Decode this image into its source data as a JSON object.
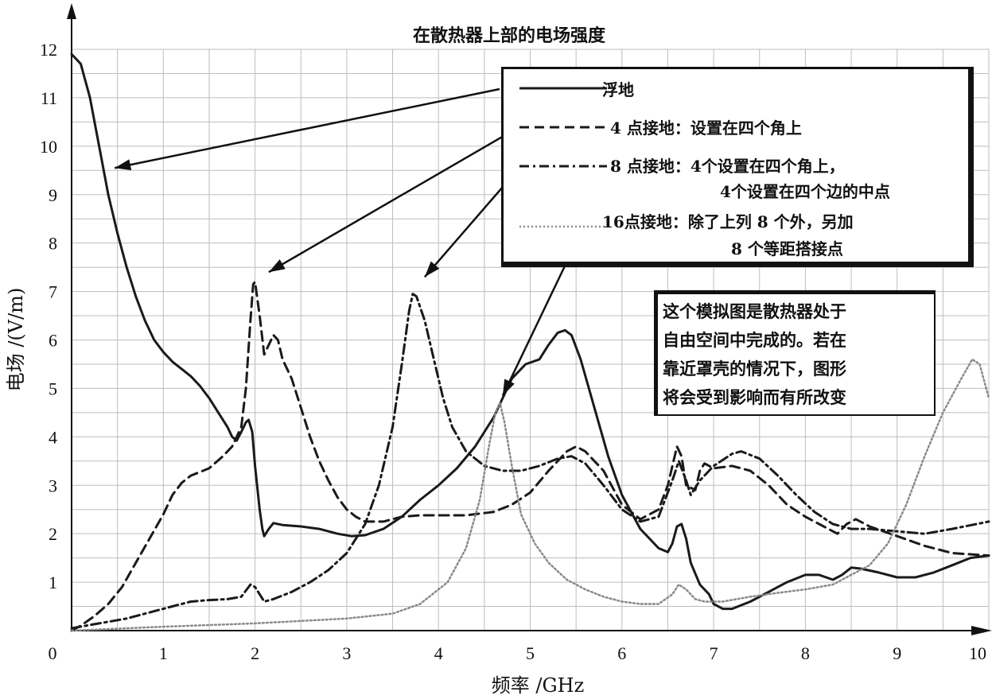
{
  "chart_data": {
    "type": "line",
    "title": "在散热器上部的电场强度",
    "xlabel": "频率 /GHz",
    "ylabel": "电场 /(V/m)",
    "xlim": [
      0,
      10
    ],
    "ylim": [
      0,
      12
    ],
    "x_ticks": [
      "0",
      "1",
      "2",
      "3",
      "4",
      "5",
      "6",
      "7",
      "8",
      "9",
      "10"
    ],
    "y_ticks": [
      "1",
      "2",
      "3",
      "4",
      "5",
      "6",
      "7",
      "8",
      "9",
      "10",
      "11",
      "12"
    ],
    "grid": true,
    "legend_position": "top-right",
    "series": [
      {
        "name": "浮地",
        "style": "solid",
        "color": "#1a1a1a",
        "points": [
          [
            0,
            11.9
          ],
          [
            0.1,
            11.7
          ],
          [
            0.2,
            11.0
          ],
          [
            0.3,
            10.0
          ],
          [
            0.4,
            9.0
          ],
          [
            0.5,
            8.2
          ],
          [
            0.6,
            7.5
          ],
          [
            0.7,
            6.9
          ],
          [
            0.8,
            6.4
          ],
          [
            0.9,
            6.0
          ],
          [
            1.0,
            5.75
          ],
          [
            1.1,
            5.55
          ],
          [
            1.2,
            5.4
          ],
          [
            1.3,
            5.25
          ],
          [
            1.4,
            5.05
          ],
          [
            1.5,
            4.8
          ],
          [
            1.6,
            4.5
          ],
          [
            1.7,
            4.2
          ],
          [
            1.75,
            4.0
          ],
          [
            1.8,
            3.92
          ],
          [
            1.85,
            4.1
          ],
          [
            1.9,
            4.3
          ],
          [
            1.93,
            4.35
          ],
          [
            1.97,
            4.1
          ],
          [
            2.0,
            3.4
          ],
          [
            2.05,
            2.5
          ],
          [
            2.08,
            2.1
          ],
          [
            2.1,
            1.95
          ],
          [
            2.15,
            2.1
          ],
          [
            2.2,
            2.22
          ],
          [
            2.3,
            2.18
          ],
          [
            2.5,
            2.15
          ],
          [
            2.7,
            2.1
          ],
          [
            2.9,
            2.0
          ],
          [
            3.05,
            1.95
          ],
          [
            3.2,
            1.97
          ],
          [
            3.4,
            2.1
          ],
          [
            3.6,
            2.35
          ],
          [
            3.8,
            2.7
          ],
          [
            4.0,
            3.0
          ],
          [
            4.2,
            3.35
          ],
          [
            4.4,
            3.8
          ],
          [
            4.6,
            4.4
          ],
          [
            4.8,
            5.2
          ],
          [
            4.95,
            5.5
          ],
          [
            5.1,
            5.6
          ],
          [
            5.2,
            5.9
          ],
          [
            5.3,
            6.15
          ],
          [
            5.38,
            6.2
          ],
          [
            5.45,
            6.1
          ],
          [
            5.55,
            5.6
          ],
          [
            5.7,
            4.6
          ],
          [
            5.85,
            3.6
          ],
          [
            6.0,
            2.8
          ],
          [
            6.2,
            2.1
          ],
          [
            6.4,
            1.7
          ],
          [
            6.5,
            1.62
          ],
          [
            6.55,
            1.8
          ],
          [
            6.6,
            2.15
          ],
          [
            6.65,
            2.2
          ],
          [
            6.7,
            1.9
          ],
          [
            6.75,
            1.4
          ],
          [
            6.85,
            0.95
          ],
          [
            6.95,
            0.75
          ],
          [
            7.0,
            0.55
          ],
          [
            7.1,
            0.45
          ],
          [
            7.2,
            0.45
          ],
          [
            7.4,
            0.6
          ],
          [
            7.6,
            0.8
          ],
          [
            7.8,
            1.0
          ],
          [
            8.0,
            1.15
          ],
          [
            8.15,
            1.15
          ],
          [
            8.3,
            1.05
          ],
          [
            8.4,
            1.15
          ],
          [
            8.5,
            1.3
          ],
          [
            8.6,
            1.28
          ],
          [
            8.8,
            1.2
          ],
          [
            9.0,
            1.1
          ],
          [
            9.2,
            1.1
          ],
          [
            9.4,
            1.2
          ],
          [
            9.6,
            1.35
          ],
          [
            9.8,
            1.5
          ],
          [
            10,
            1.55
          ]
        ]
      },
      {
        "name": "4 点接地：设置在四个角上",
        "style": "dashed",
        "color": "#1a1a1a",
        "points": [
          [
            0,
            0.0
          ],
          [
            0.1,
            0.1
          ],
          [
            0.25,
            0.3
          ],
          [
            0.4,
            0.55
          ],
          [
            0.55,
            0.9
          ],
          [
            0.7,
            1.4
          ],
          [
            0.85,
            1.9
          ],
          [
            1.0,
            2.4
          ],
          [
            1.1,
            2.8
          ],
          [
            1.2,
            3.05
          ],
          [
            1.3,
            3.2
          ],
          [
            1.5,
            3.35
          ],
          [
            1.65,
            3.6
          ],
          [
            1.75,
            3.8
          ],
          [
            1.85,
            4.2
          ],
          [
            1.9,
            5.0
          ],
          [
            1.95,
            6.4
          ],
          [
            1.98,
            7.15
          ],
          [
            2.0,
            7.2
          ],
          [
            2.05,
            6.5
          ],
          [
            2.1,
            5.7
          ],
          [
            2.15,
            5.9
          ],
          [
            2.2,
            6.1
          ],
          [
            2.25,
            6.0
          ],
          [
            2.3,
            5.6
          ],
          [
            2.4,
            5.2
          ],
          [
            2.5,
            4.6
          ],
          [
            2.6,
            4.0
          ],
          [
            2.7,
            3.5
          ],
          [
            2.8,
            3.1
          ],
          [
            2.9,
            2.75
          ],
          [
            3.0,
            2.5
          ],
          [
            3.1,
            2.35
          ],
          [
            3.2,
            2.25
          ],
          [
            3.4,
            2.25
          ],
          [
            3.6,
            2.35
          ],
          [
            3.8,
            2.38
          ],
          [
            4.0,
            2.38
          ],
          [
            4.3,
            2.38
          ],
          [
            4.6,
            2.45
          ],
          [
            4.8,
            2.6
          ],
          [
            5.0,
            2.85
          ],
          [
            5.2,
            3.3
          ],
          [
            5.4,
            3.7
          ],
          [
            5.5,
            3.8
          ],
          [
            5.6,
            3.7
          ],
          [
            5.8,
            3.3
          ],
          [
            6.0,
            2.6
          ],
          [
            6.2,
            2.3
          ],
          [
            6.4,
            2.5
          ],
          [
            6.5,
            3.0
          ],
          [
            6.6,
            3.8
          ],
          [
            6.65,
            3.6
          ],
          [
            6.7,
            3.0
          ],
          [
            6.8,
            2.9
          ],
          [
            6.85,
            3.3
          ],
          [
            6.9,
            3.45
          ],
          [
            7.0,
            3.35
          ],
          [
            7.2,
            3.4
          ],
          [
            7.4,
            3.3
          ],
          [
            7.6,
            3.0
          ],
          [
            7.8,
            2.6
          ],
          [
            8.0,
            2.35
          ],
          [
            8.2,
            2.15
          ],
          [
            8.35,
            2.0
          ],
          [
            8.45,
            2.2
          ],
          [
            8.55,
            2.3
          ],
          [
            8.7,
            2.15
          ],
          [
            9.0,
            1.95
          ],
          [
            9.3,
            1.75
          ],
          [
            9.6,
            1.6
          ],
          [
            10,
            1.55
          ]
        ]
      },
      {
        "name": "8 点接地：4个设置在四个角上，4个设置在四个边的中点",
        "style": "dash-dot",
        "color": "#1a1a1a",
        "points": [
          [
            0,
            0.05
          ],
          [
            0.3,
            0.15
          ],
          [
            0.6,
            0.25
          ],
          [
            0.9,
            0.4
          ],
          [
            1.1,
            0.5
          ],
          [
            1.3,
            0.6
          ],
          [
            1.5,
            0.63
          ],
          [
            1.7,
            0.65
          ],
          [
            1.85,
            0.7
          ],
          [
            1.95,
            0.95
          ],
          [
            2.0,
            0.9
          ],
          [
            2.05,
            0.75
          ],
          [
            2.1,
            0.6
          ],
          [
            2.2,
            0.65
          ],
          [
            2.4,
            0.8
          ],
          [
            2.6,
            1.0
          ],
          [
            2.8,
            1.25
          ],
          [
            3.0,
            1.6
          ],
          [
            3.2,
            2.2
          ],
          [
            3.35,
            3.0
          ],
          [
            3.5,
            4.2
          ],
          [
            3.6,
            5.5
          ],
          [
            3.68,
            6.6
          ],
          [
            3.72,
            6.95
          ],
          [
            3.76,
            6.9
          ],
          [
            3.85,
            6.4
          ],
          [
            3.95,
            5.6
          ],
          [
            4.05,
            4.8
          ],
          [
            4.15,
            4.2
          ],
          [
            4.3,
            3.7
          ],
          [
            4.5,
            3.4
          ],
          [
            4.7,
            3.3
          ],
          [
            4.9,
            3.3
          ],
          [
            5.1,
            3.4
          ],
          [
            5.3,
            3.55
          ],
          [
            5.45,
            3.6
          ],
          [
            5.6,
            3.45
          ],
          [
            5.8,
            3.0
          ],
          [
            6.0,
            2.5
          ],
          [
            6.2,
            2.25
          ],
          [
            6.4,
            2.35
          ],
          [
            6.55,
            3.1
          ],
          [
            6.62,
            3.5
          ],
          [
            6.7,
            3.1
          ],
          [
            6.75,
            2.8
          ],
          [
            6.85,
            3.1
          ],
          [
            7.0,
            3.4
          ],
          [
            7.2,
            3.65
          ],
          [
            7.3,
            3.7
          ],
          [
            7.5,
            3.55
          ],
          [
            7.7,
            3.2
          ],
          [
            7.9,
            2.8
          ],
          [
            8.1,
            2.45
          ],
          [
            8.3,
            2.2
          ],
          [
            8.5,
            2.1
          ],
          [
            8.7,
            2.1
          ],
          [
            9.0,
            2.05
          ],
          [
            9.3,
            2.0
          ],
          [
            9.6,
            2.1
          ],
          [
            10,
            2.25
          ]
        ]
      },
      {
        "name": "16点接地：除了上列 8 个外，另加 8 个等距搭接点",
        "style": "dotted",
        "color": "#8a8a8a",
        "points": [
          [
            0,
            0.0
          ],
          [
            1.0,
            0.08
          ],
          [
            2.0,
            0.15
          ],
          [
            3.0,
            0.25
          ],
          [
            3.5,
            0.35
          ],
          [
            3.8,
            0.55
          ],
          [
            4.1,
            1.0
          ],
          [
            4.3,
            1.7
          ],
          [
            4.45,
            2.7
          ],
          [
            4.55,
            3.8
          ],
          [
            4.62,
            4.5
          ],
          [
            4.67,
            4.7
          ],
          [
            4.72,
            4.3
          ],
          [
            4.8,
            3.4
          ],
          [
            4.9,
            2.4
          ],
          [
            5.05,
            1.8
          ],
          [
            5.2,
            1.4
          ],
          [
            5.4,
            1.05
          ],
          [
            5.6,
            0.85
          ],
          [
            5.8,
            0.7
          ],
          [
            6.0,
            0.6
          ],
          [
            6.2,
            0.55
          ],
          [
            6.4,
            0.55
          ],
          [
            6.55,
            0.75
          ],
          [
            6.62,
            0.95
          ],
          [
            6.7,
            0.85
          ],
          [
            6.8,
            0.65
          ],
          [
            6.9,
            0.6
          ],
          [
            7.1,
            0.6
          ],
          [
            7.4,
            0.7
          ],
          [
            7.7,
            0.78
          ],
          [
            8.0,
            0.85
          ],
          [
            8.3,
            0.95
          ],
          [
            8.5,
            1.15
          ],
          [
            8.7,
            1.35
          ],
          [
            8.9,
            1.8
          ],
          [
            9.1,
            2.6
          ],
          [
            9.3,
            3.6
          ],
          [
            9.5,
            4.5
          ],
          [
            9.7,
            5.2
          ],
          [
            9.82,
            5.6
          ],
          [
            9.9,
            5.5
          ],
          [
            10,
            4.8
          ]
        ]
      }
    ],
    "annotation": [
      "这个模拟图是散热器处于",
      "自由空间中完成的。若在",
      "靠近罩壳的情况下，图形",
      "将会受到影响而有所改变"
    ]
  },
  "legend": [
    {
      "label": "浮地",
      "style": "solid"
    },
    {
      "label": "4 点接地：设置在四个角上",
      "style": "dashed"
    },
    {
      "label": "8 点接地：4个设置在四个角上，",
      "label2": "4个设置在四个边的中点",
      "style": "dash-dot"
    },
    {
      "label": "16点接地：除了上列 8 个外，另加",
      "label2": "8 个等距搭接点",
      "style": "dotted"
    }
  ]
}
